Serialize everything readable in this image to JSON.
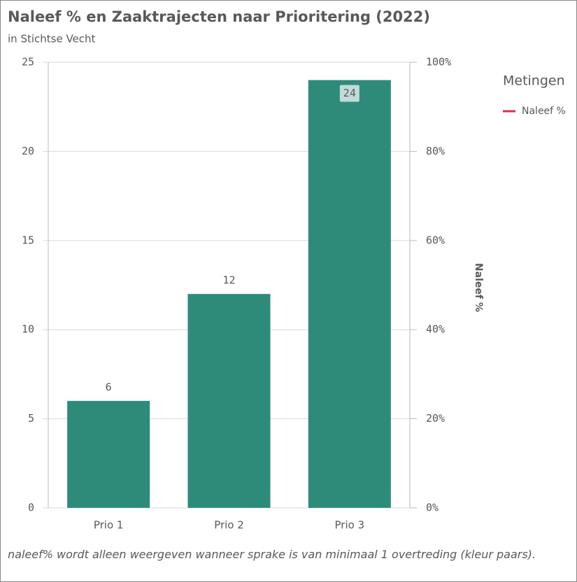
{
  "chart_data": {
    "type": "bar",
    "title": "Naleef % en Zaaktrajecten naar Prioritering (2022)",
    "subtitle": "in Stichtse Vecht",
    "categories": [
      "Prio 1",
      "Prio 2",
      "Prio 3"
    ],
    "series": [
      {
        "values": [
          6,
          12,
          24
        ],
        "color": "#2e8b7a"
      },
      {
        "name": "Naleef %",
        "color": "#d9334a",
        "values": [
          null,
          null,
          null
        ],
        "axis": "y2",
        "type": "line"
      }
    ],
    "ylim": [
      0,
      25
    ],
    "yticks": [
      0,
      5,
      10,
      15,
      20,
      25
    ],
    "y2lim": [
      0,
      100
    ],
    "y2ticks": [
      {
        "value": 0,
        "label": "0%"
      },
      {
        "value": 20,
        "label": "20%"
      },
      {
        "value": 40,
        "label": "40%"
      },
      {
        "value": 60,
        "label": "60%"
      },
      {
        "value": 80,
        "label": "80%"
      },
      {
        "value": 100,
        "label": "100%"
      }
    ],
    "y2label": "Naleef %",
    "legend_title": "Metingen",
    "legend": "top-right",
    "grid": true,
    "note": "naleef% wordt alleen weergeven wanneer sprake is van minimaal 1 overtreding (kleur paars)."
  }
}
